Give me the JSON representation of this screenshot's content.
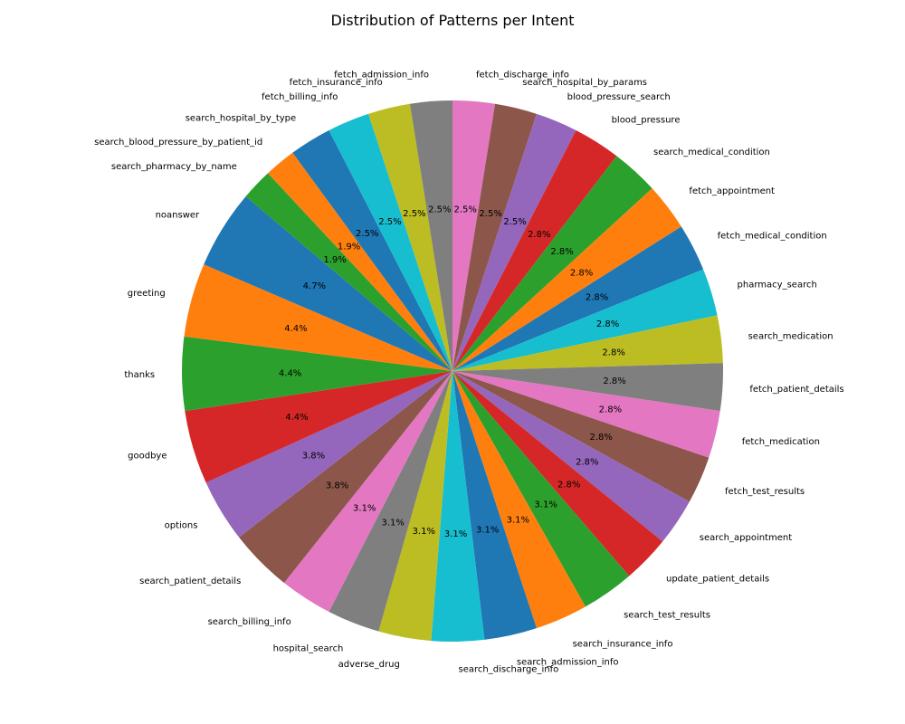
{
  "chart_data": {
    "type": "pie",
    "title": "Distribution of Patterns per Intent",
    "start_angle_deg": 90,
    "direction": "clockwise",
    "palette": [
      "#e377c2",
      "#8c564b",
      "#9467bd",
      "#d62728",
      "#2ca02c",
      "#ff7f0e",
      "#1f77b4",
      "#17becf",
      "#bcbd22",
      "#7f7f7f"
    ],
    "slices": [
      {
        "label": "fetch_discharge_info",
        "value": 8,
        "pct_label": "2.5%",
        "color": "#e377c2"
      },
      {
        "label": "search_hospital_by_params",
        "value": 8,
        "pct_label": "2.5%",
        "color": "#8c564b"
      },
      {
        "label": "blood_pressure_search",
        "value": 8,
        "pct_label": "2.5%",
        "color": "#9467bd"
      },
      {
        "label": "blood_pressure",
        "value": 9,
        "pct_label": "2.8%",
        "color": "#d62728"
      },
      {
        "label": "search_medical_condition",
        "value": 9,
        "pct_label": "2.8%",
        "color": "#2ca02c"
      },
      {
        "label": "fetch_appointment",
        "value": 9,
        "pct_label": "2.8%",
        "color": "#ff7f0e"
      },
      {
        "label": "fetch_medical_condition",
        "value": 9,
        "pct_label": "2.8%",
        "color": "#1f77b4"
      },
      {
        "label": "pharmacy_search",
        "value": 9,
        "pct_label": "2.8%",
        "color": "#17becf"
      },
      {
        "label": "search_medication",
        "value": 9,
        "pct_label": "2.8%",
        "color": "#bcbd22"
      },
      {
        "label": "fetch_patient_details",
        "value": 9,
        "pct_label": "2.8%",
        "color": "#7f7f7f"
      },
      {
        "label": "fetch_medication",
        "value": 9,
        "pct_label": "2.8%",
        "color": "#e377c2"
      },
      {
        "label": "fetch_test_results",
        "value": 9,
        "pct_label": "2.8%",
        "color": "#8c564b"
      },
      {
        "label": "search_appointment",
        "value": 9,
        "pct_label": "2.8%",
        "color": "#9467bd"
      },
      {
        "label": "update_patient_details",
        "value": 9,
        "pct_label": "2.8%",
        "color": "#d62728"
      },
      {
        "label": "search_test_results",
        "value": 10,
        "pct_label": "3.1%",
        "color": "#2ca02c"
      },
      {
        "label": "search_insurance_info",
        "value": 10,
        "pct_label": "3.1%",
        "color": "#ff7f0e"
      },
      {
        "label": "search_admission_info",
        "value": 10,
        "pct_label": "3.1%",
        "color": "#1f77b4"
      },
      {
        "label": "search_discharge_info",
        "value": 10,
        "pct_label": "3.1%",
        "color": "#17becf"
      },
      {
        "label": "adverse_drug",
        "value": 10,
        "pct_label": "3.1%",
        "color": "#bcbd22"
      },
      {
        "label": "hospital_search",
        "value": 10,
        "pct_label": "3.1%",
        "color": "#7f7f7f"
      },
      {
        "label": "search_billing_info",
        "value": 10,
        "pct_label": "3.1%",
        "color": "#e377c2"
      },
      {
        "label": "search_patient_details",
        "value": 12,
        "pct_label": "3.8%",
        "color": "#8c564b"
      },
      {
        "label": "options",
        "value": 12,
        "pct_label": "3.8%",
        "color": "#9467bd"
      },
      {
        "label": "goodbye",
        "value": 14,
        "pct_label": "4.4%",
        "color": "#d62728"
      },
      {
        "label": "thanks",
        "value": 14,
        "pct_label": "4.4%",
        "color": "#2ca02c"
      },
      {
        "label": "greeting",
        "value": 14,
        "pct_label": "4.4%",
        "color": "#ff7f0e"
      },
      {
        "label": "noanswer",
        "value": 15,
        "pct_label": "4.7%",
        "color": "#1f77b4"
      },
      {
        "label": "search_pharmacy_by_name",
        "value": 6,
        "pct_label": "1.9%",
        "color": "#2ca02c"
      },
      {
        "label": "search_blood_pressure_by_patient_id",
        "value": 6,
        "pct_label": "1.9%",
        "color": "#ff7f0e"
      },
      {
        "label": "search_hospital_by_type",
        "value": 8,
        "pct_label": "2.5%",
        "color": "#1f77b4"
      },
      {
        "label": "fetch_billing_info",
        "value": 8,
        "pct_label": "2.5%",
        "color": "#17becf"
      },
      {
        "label": "fetch_insurance_info",
        "value": 8,
        "pct_label": "2.5%",
        "color": "#bcbd22"
      },
      {
        "label": "fetch_admission_info",
        "value": 8,
        "pct_label": "2.5%",
        "color": "#7f7f7f"
      }
    ]
  }
}
